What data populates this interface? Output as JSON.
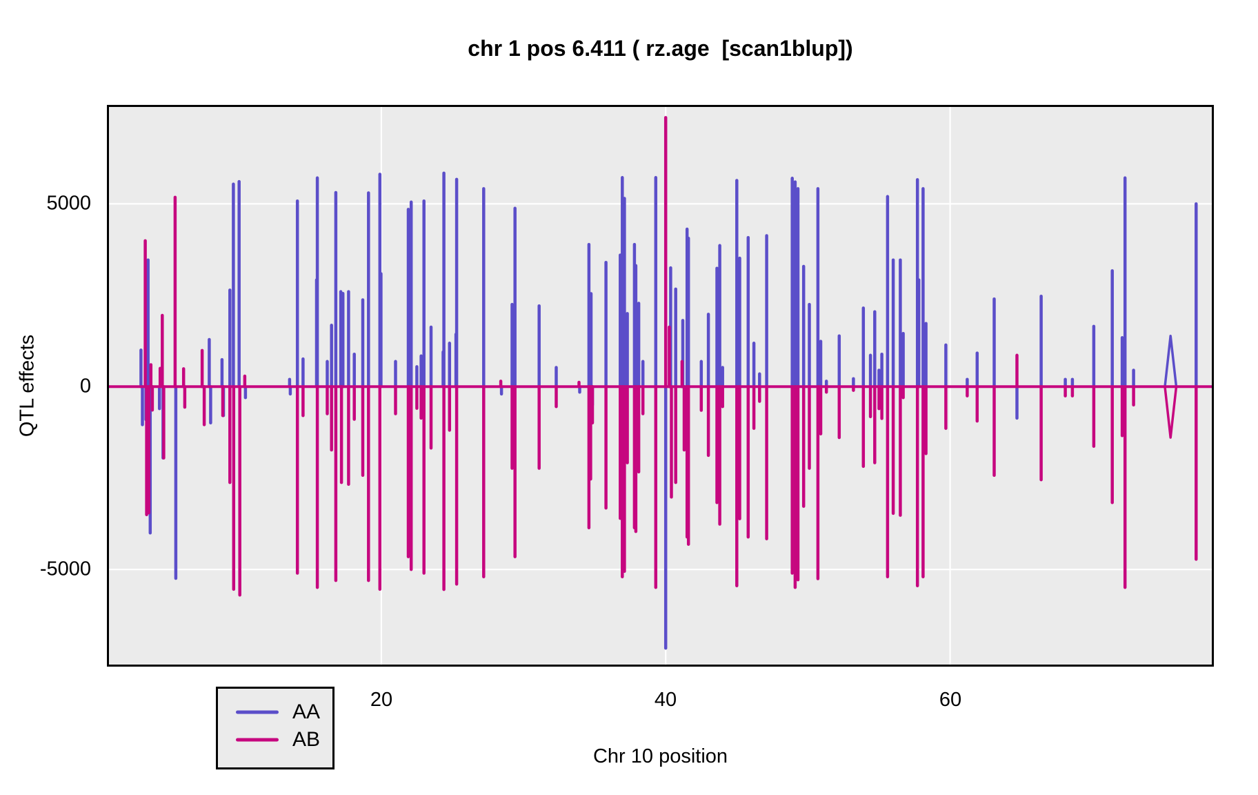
{
  "title": "chr 1 pos 6.411 ( rz.age  [scan1blup])",
  "colors": {
    "aa": "#5B4EC9",
    "ab": "#C6077F",
    "plot_background": "#EBEBEB",
    "gridline": "#FFFFFF",
    "border": "#000000",
    "text": "#000000"
  },
  "axes": {
    "y_tick_labels": [
      "5000",
      "0",
      "-5000"
    ],
    "x_tick_labels": [
      "20",
      "40",
      "60"
    ]
  },
  "chart_data": {
    "type": "line",
    "title": "chr 1 pos 6.411 ( rz.age  [scan1blup])",
    "xlabel": "Chr 10 position",
    "ylabel": "QTL effects",
    "xlim": [
      0.85,
      78.4
    ],
    "ylim": [
      -7600,
      7650
    ],
    "x_ticks": [
      20,
      40,
      60
    ],
    "y_ticks": [
      5000,
      0,
      -5000
    ],
    "grid": true,
    "panel_background": "#EBEBEB",
    "baseline": 0,
    "legend": {
      "position": "bottom-left",
      "entries": [
        {
          "label": "AA",
          "color": "#5B4EC9"
        },
        {
          "label": "AB",
          "color": "#C6077F"
        }
      ]
    },
    "series": [
      {
        "name": "AA",
        "color": "#5B4EC9",
        "spikes": [
          [
            3.1,
            1000
          ],
          [
            3.2,
            -1040
          ],
          [
            3.45,
            -900
          ],
          [
            3.6,
            3465
          ],
          [
            3.75,
            -4000
          ],
          [
            4.4,
            -600
          ],
          [
            4.65,
            -1950
          ],
          [
            5.55,
            -5240
          ],
          [
            7.9,
            1290
          ],
          [
            8.0,
            -990
          ],
          [
            8.8,
            740
          ],
          [
            8.9,
            -790
          ],
          [
            9.35,
            2640
          ],
          [
            9.6,
            5540
          ],
          [
            10.0,
            5610
          ],
          [
            10.45,
            -300
          ],
          [
            13.55,
            200
          ],
          [
            13.6,
            -200
          ],
          [
            14.1,
            5080
          ],
          [
            14.5,
            760
          ],
          [
            15.45,
            2920
          ],
          [
            15.5,
            5710
          ],
          [
            16.2,
            690
          ],
          [
            16.5,
            1680
          ],
          [
            16.8,
            5310
          ],
          [
            17.15,
            2600
          ],
          [
            17.3,
            2550
          ],
          [
            17.7,
            2600
          ],
          [
            18.1,
            890
          ],
          [
            18.7,
            2375
          ],
          [
            19.1,
            5300
          ],
          [
            19.9,
            5810
          ],
          [
            19.98,
            3090
          ],
          [
            21.0,
            690
          ],
          [
            21.9,
            4850
          ],
          [
            22.1,
            5050
          ],
          [
            22.5,
            545
          ],
          [
            22.8,
            840
          ],
          [
            23.0,
            5080
          ],
          [
            23.5,
            1630
          ],
          [
            24.35,
            950
          ],
          [
            24.4,
            5840
          ],
          [
            24.8,
            1190
          ],
          [
            25.25,
            1435
          ],
          [
            25.3,
            5670
          ],
          [
            27.2,
            5415
          ],
          [
            28.45,
            -200
          ],
          [
            29.2,
            2250
          ],
          [
            29.4,
            4880
          ],
          [
            31.1,
            2210
          ],
          [
            32.3,
            525
          ],
          [
            33.95,
            -150
          ],
          [
            34.6,
            3890
          ],
          [
            34.75,
            2545
          ],
          [
            34.85,
            -500
          ],
          [
            35.8,
            3400
          ],
          [
            36.8,
            3600
          ],
          [
            36.95,
            5720
          ],
          [
            37.1,
            5150
          ],
          [
            37.3,
            2000
          ],
          [
            37.8,
            3890
          ],
          [
            37.9,
            3310
          ],
          [
            38.1,
            2280
          ],
          [
            38.4,
            690
          ],
          [
            39.3,
            5720
          ],
          [
            40.0,
            -7150
          ],
          [
            40.35,
            3250
          ],
          [
            40.7,
            2670
          ],
          [
            41.2,
            1810
          ],
          [
            41.5,
            4310
          ],
          [
            41.6,
            4060
          ],
          [
            42.5,
            690
          ],
          [
            43.0,
            1980
          ],
          [
            43.6,
            3240
          ],
          [
            43.8,
            3860
          ],
          [
            44.0,
            525
          ],
          [
            45.0,
            5640
          ],
          [
            45.2,
            3515
          ],
          [
            45.8,
            4080
          ],
          [
            46.2,
            1190
          ],
          [
            46.6,
            350
          ],
          [
            47.1,
            4130
          ],
          [
            48.9,
            5700
          ],
          [
            49.1,
            5600
          ],
          [
            49.3,
            5415
          ],
          [
            49.7,
            3290
          ],
          [
            50.1,
            2250
          ],
          [
            50.7,
            5415
          ],
          [
            50.9,
            1240
          ],
          [
            51.3,
            150
          ],
          [
            52.2,
            1390
          ],
          [
            53.2,
            220
          ],
          [
            53.9,
            2150
          ],
          [
            54.4,
            860
          ],
          [
            54.7,
            2050
          ],
          [
            55.0,
            450
          ],
          [
            55.2,
            890
          ],
          [
            55.6,
            5200
          ],
          [
            56.0,
            3465
          ],
          [
            56.5,
            3465
          ],
          [
            56.7,
            1455
          ],
          [
            57.7,
            5660
          ],
          [
            57.8,
            2920
          ],
          [
            58.1,
            5415
          ],
          [
            58.3,
            1730
          ],
          [
            59.7,
            1140
          ],
          [
            61.2,
            200
          ],
          [
            61.9,
            920
          ],
          [
            63.1,
            2400
          ],
          [
            64.7,
            -860
          ],
          [
            66.4,
            2475
          ],
          [
            68.1,
            200
          ],
          [
            68.6,
            200
          ],
          [
            70.1,
            1650
          ],
          [
            71.4,
            3170
          ],
          [
            72.1,
            1340
          ],
          [
            72.3,
            5710
          ],
          [
            72.9,
            450
          ],
          [
            75.5,
            1390,
            0.4
          ],
          [
            77.3,
            5000
          ]
        ]
      },
      {
        "name": "AB",
        "color": "#C6077F",
        "spikes": [
          [
            3.4,
            3990
          ],
          [
            3.5,
            -3500
          ],
          [
            3.65,
            -3450
          ],
          [
            3.8,
            600
          ],
          [
            3.9,
            -640
          ],
          [
            4.45,
            500
          ],
          [
            4.6,
            1950
          ],
          [
            4.7,
            -1950
          ],
          [
            5.5,
            5180
          ],
          [
            6.1,
            490
          ],
          [
            6.18,
            -560
          ],
          [
            7.4,
            990
          ],
          [
            7.55,
            -1040
          ],
          [
            8.85,
            -790
          ],
          [
            9.35,
            -2620
          ],
          [
            9.62,
            -5540
          ],
          [
            10.05,
            -5700
          ],
          [
            10.4,
            290
          ],
          [
            14.1,
            -5100
          ],
          [
            14.5,
            -790
          ],
          [
            15.5,
            -5490
          ],
          [
            16.2,
            -740
          ],
          [
            16.5,
            -1730
          ],
          [
            16.8,
            -5300
          ],
          [
            17.2,
            -2620
          ],
          [
            17.7,
            -2670
          ],
          [
            18.1,
            -890
          ],
          [
            18.7,
            -2425
          ],
          [
            19.1,
            -5300
          ],
          [
            19.9,
            -5540
          ],
          [
            21.0,
            -740
          ],
          [
            21.9,
            -4650
          ],
          [
            22.1,
            -5000
          ],
          [
            22.5,
            -590
          ],
          [
            22.8,
            -860
          ],
          [
            23.0,
            -5100
          ],
          [
            23.5,
            -1680
          ],
          [
            24.4,
            -5545
          ],
          [
            24.8,
            -1190
          ],
          [
            25.3,
            -5400
          ],
          [
            27.2,
            -5200
          ],
          [
            28.4,
            150
          ],
          [
            29.2,
            -2230
          ],
          [
            29.4,
            -4650
          ],
          [
            31.1,
            -2230
          ],
          [
            32.3,
            -545
          ],
          [
            33.9,
            120
          ],
          [
            34.6,
            -3860
          ],
          [
            34.72,
            -2525
          ],
          [
            34.85,
            -990
          ],
          [
            35.8,
            -3320
          ],
          [
            36.8,
            -3600
          ],
          [
            36.95,
            -5200
          ],
          [
            37.1,
            -5050
          ],
          [
            37.3,
            -2080
          ],
          [
            37.8,
            -3860
          ],
          [
            37.9,
            -3960
          ],
          [
            38.1,
            -2330
          ],
          [
            38.4,
            -740
          ],
          [
            39.3,
            -5490
          ],
          [
            40.0,
            7360
          ],
          [
            40.25,
            1630
          ],
          [
            40.4,
            -3020
          ],
          [
            40.7,
            -2620
          ],
          [
            41.15,
            690
          ],
          [
            41.3,
            -1730
          ],
          [
            41.5,
            -4110
          ],
          [
            41.6,
            -4310
          ],
          [
            42.5,
            -645
          ],
          [
            43.0,
            -1880
          ],
          [
            43.6,
            -3170
          ],
          [
            43.8,
            -3760
          ],
          [
            44.0,
            -545
          ],
          [
            45.0,
            -5445
          ],
          [
            45.2,
            -3610
          ],
          [
            45.8,
            -4110
          ],
          [
            46.2,
            -1140
          ],
          [
            46.6,
            -400
          ],
          [
            47.1,
            -4160
          ],
          [
            48.9,
            -5100
          ],
          [
            49.1,
            -5490
          ],
          [
            49.3,
            -5280
          ],
          [
            49.7,
            -3270
          ],
          [
            50.1,
            -2230
          ],
          [
            50.7,
            -5250
          ],
          [
            50.9,
            -1290
          ],
          [
            51.3,
            -150
          ],
          [
            52.2,
            -1390
          ],
          [
            53.2,
            -100
          ],
          [
            53.9,
            -2180
          ],
          [
            54.4,
            -820
          ],
          [
            54.7,
            -2080
          ],
          [
            55.0,
            -600
          ],
          [
            55.2,
            -870
          ],
          [
            55.6,
            -5200
          ],
          [
            56.0,
            -3465
          ],
          [
            56.5,
            -3515
          ],
          [
            56.7,
            -300
          ],
          [
            57.7,
            -5445
          ],
          [
            58.1,
            -5200
          ],
          [
            58.3,
            -1830
          ],
          [
            59.7,
            -1140
          ],
          [
            61.2,
            -250
          ],
          [
            61.9,
            -940
          ],
          [
            63.1,
            -2425
          ],
          [
            64.7,
            860
          ],
          [
            66.4,
            -2545
          ],
          [
            68.1,
            -250
          ],
          [
            68.6,
            -250
          ],
          [
            70.1,
            -1630
          ],
          [
            71.4,
            -3170
          ],
          [
            72.1,
            -1340
          ],
          [
            72.3,
            -5490
          ],
          [
            72.9,
            -500
          ],
          [
            75.5,
            -1390,
            0.4
          ],
          [
            77.3,
            -4720
          ]
        ]
      }
    ]
  }
}
